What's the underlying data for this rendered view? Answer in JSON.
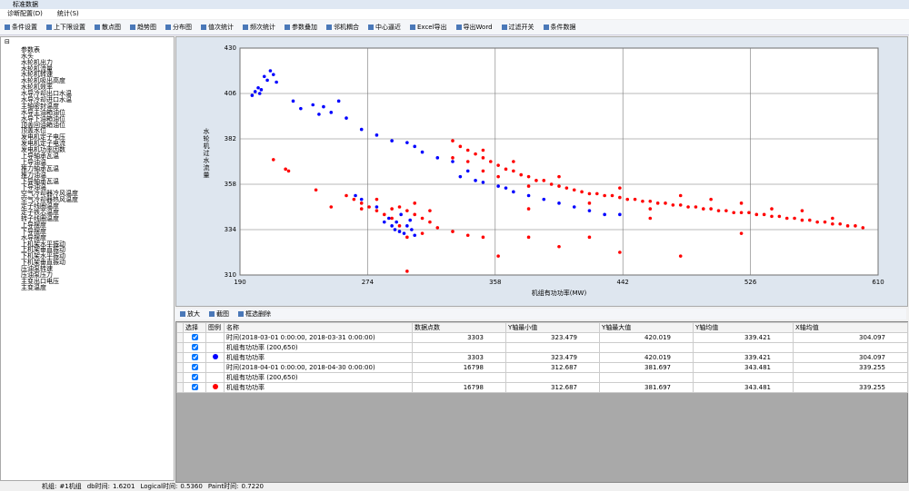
{
  "window": {
    "title": "标准数据"
  },
  "menu": [
    "诊断配置(D)",
    "统计(S)"
  ],
  "toolbar": [
    "条件设置",
    "上下限设置",
    "散点图",
    "趋势图",
    "分布图",
    "值次统计",
    "频次统计",
    "参数叠加",
    "邻机耦合",
    "中心逼近",
    "Excel导出",
    "导出Word",
    "过滤开关",
    "条件数据"
  ],
  "tree": {
    "root": "参数表",
    "items": [
      "水头",
      "水轮机出力",
      "水轮机流量",
      "水轮机转速",
      "水轮机吸出高度",
      "水轮机效率",
      "水导冷却出口水温",
      "水导冷却进口水温",
      "主轴密封温度",
      "水导主油箱油位",
      "水导下油箱油位",
      "顶盖回油箱油位",
      "顶盖水位",
      "发电机定子电压",
      "发电机定子电流",
      "发电机功率因数",
      "上导轴承瓦温",
      "上导油温",
      "推力轴承瓦温",
      "推力油温",
      "下导轴承瓦温",
      "下导油温",
      "空气冷却器冷风温度",
      "空气冷却器热风温度",
      "定子线圈温度",
      "定子铁芯温度",
      "转子线圈温度",
      "上导摆度",
      "下导摆度",
      "水导摆度",
      "上机架水平振动",
      "上机架垂直振动",
      "下机架水平振动",
      "下机架垂直振动",
      "压油泵转速",
      "压油泵压力",
      "主变出口电压",
      "主变温度"
    ]
  },
  "chart_data": {
    "type": "scatter",
    "ylabel": "水轮机过水流量",
    "xlabel": "机组有功功率(MW)",
    "xlim": [
      190,
      610
    ],
    "xticks": [
      190,
      274,
      358,
      442,
      526,
      610
    ],
    "ylim": [
      310,
      430
    ],
    "yticks": [
      310,
      334,
      358,
      382,
      406,
      430
    ],
    "grid": true,
    "series": [
      {
        "color": "#0000ff",
        "x": [
          198,
          200,
          202,
          204,
          206,
          208,
          210,
          212,
          203,
          214,
          225,
          230,
          238,
          242,
          245,
          250,
          255,
          260,
          270,
          280,
          290,
          300,
          305,
          310,
          320,
          330,
          335,
          340,
          345,
          350,
          360,
          365,
          370,
          380,
          390,
          400,
          410,
          420,
          430,
          440,
          266,
          270,
          280,
          285,
          290,
          292,
          295,
          298,
          300,
          303,
          305,
          293,
          288,
          296,
          302
        ],
        "values": [
          405,
          407,
          409,
          408,
          415,
          413,
          418,
          416,
          406,
          412,
          402,
          398,
          400,
          395,
          399,
          396,
          402,
          393,
          387,
          384,
          381,
          380,
          378,
          375,
          372,
          370,
          362,
          365,
          360,
          359,
          357,
          356,
          354,
          352,
          350,
          348,
          346,
          344,
          342,
          342,
          352,
          350,
          346,
          338,
          336,
          334,
          333,
          332,
          336,
          334,
          331,
          338,
          340,
          342,
          339
        ]
      },
      {
        "color": "#ff0000",
        "x": [
          330,
          335,
          340,
          345,
          350,
          355,
          360,
          365,
          370,
          375,
          380,
          385,
          390,
          395,
          400,
          405,
          410,
          415,
          420,
          425,
          430,
          435,
          440,
          445,
          450,
          455,
          460,
          465,
          470,
          475,
          480,
          485,
          490,
          495,
          500,
          505,
          510,
          515,
          520,
          525,
          530,
          535,
          540,
          545,
          550,
          555,
          560,
          565,
          570,
          575,
          580,
          585,
          590,
          595,
          600,
          340,
          350,
          360,
          370,
          380,
          400,
          420,
          440,
          460,
          480,
          500,
          520,
          540,
          560,
          580,
          350,
          330,
          260,
          265,
          270,
          275,
          280,
          285,
          290,
          295,
          300,
          305,
          310,
          315,
          320,
          300,
          310,
          290,
          280,
          270,
          295,
          305,
          315,
          212,
          220,
          222,
          240,
          250,
          300,
          330,
          340,
          360,
          380,
          400,
          420,
          440,
          460,
          380,
          350,
          480,
          520
        ],
        "values": [
          381,
          378,
          376,
          374,
          372,
          370,
          368,
          366,
          365,
          363,
          362,
          360,
          360,
          358,
          357,
          356,
          355,
          354,
          353,
          353,
          352,
          352,
          351,
          350,
          350,
          349,
          349,
          348,
          348,
          347,
          347,
          346,
          346,
          345,
          345,
          344,
          344,
          343,
          343,
          343,
          342,
          342,
          341,
          341,
          340,
          340,
          339,
          339,
          338,
          338,
          337,
          337,
          336,
          336,
          335,
          370,
          376,
          362,
          370,
          357,
          362,
          348,
          356,
          345,
          352,
          350,
          348,
          345,
          344,
          340,
          365,
          372,
          352,
          350,
          348,
          346,
          344,
          342,
          345,
          346,
          344,
          342,
          340,
          338,
          335,
          330,
          332,
          340,
          350,
          345,
          336,
          348,
          344,
          371,
          366,
          365,
          355,
          346,
          312,
          333,
          331,
          320,
          330,
          325,
          330,
          322,
          340,
          345,
          330,
          320,
          332
        ]
      }
    ]
  },
  "chart_toolbar": [
    "放大",
    "截图",
    "框选删除"
  ],
  "table": {
    "headers": [
      "选择",
      "图例",
      "名称",
      "数据点数",
      "Y轴最小值",
      "Y轴最大值",
      "Y轴均值",
      "X轴均值"
    ],
    "rows": [
      {
        "checked": true,
        "name": "时间(2018-03-01 0:00:00, 2018-03-31 0:00:00)",
        "cells": [
          3303,
          323.479,
          420.019,
          339.421,
          304.097
        ]
      },
      {
        "checked": true,
        "name": "机组有功功率 (200,650)",
        "cells": []
      },
      {
        "checked": true,
        "legend": "#0000ff",
        "name": "机组有功功率",
        "cells": [
          3303,
          323.479,
          420.019,
          339.421,
          304.097
        ]
      },
      {
        "checked": true,
        "name": "时间(2018-04-01 0:00:00, 2018-04-30 0:00:00)",
        "cells": [
          16798,
          312.687,
          381.697,
          343.481,
          339.255
        ]
      },
      {
        "checked": true,
        "name": "机组有功功率 (200,650)",
        "cells": []
      },
      {
        "checked": true,
        "legend": "#ff0000",
        "name": "机组有功功率",
        "cells": [
          16798,
          312.687,
          381.697,
          343.481,
          339.255
        ]
      }
    ]
  },
  "status": [
    {
      "label": "机组:",
      "value": "#1机组"
    },
    {
      "label": "db时间:",
      "value": "1.6201"
    },
    {
      "label": "Logical时间:",
      "value": "0.5360"
    },
    {
      "label": "Paint时间:",
      "value": "0.7220"
    }
  ]
}
